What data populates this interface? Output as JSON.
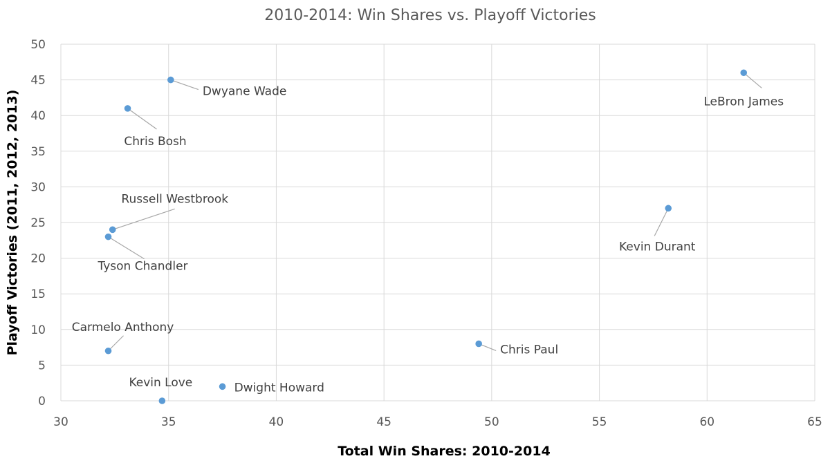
{
  "chart_data": {
    "type": "scatter",
    "title": "2010-2014: Win Shares vs. Playoff Victories",
    "xlabel": "Total Win Shares: 2010-2014",
    "ylabel": "Playoff Victories (2011, 2012, 2013)",
    "xlim": [
      30,
      65
    ],
    "ylim": [
      0,
      50
    ],
    "x_ticks": [
      "30",
      "35",
      "40",
      "45",
      "50",
      "55",
      "60",
      "65"
    ],
    "y_ticks": [
      "0",
      "5",
      "10",
      "15",
      "20",
      "25",
      "30",
      "35",
      "40",
      "45",
      "50"
    ],
    "grid": true,
    "marker_color": "#5b9bd5",
    "points": [
      {
        "label": "LeBron James",
        "x": 61.7,
        "y": 46
      },
      {
        "label": "Dwyane Wade",
        "x": 35.1,
        "y": 45
      },
      {
        "label": "Chris Bosh",
        "x": 33.1,
        "y": 41
      },
      {
        "label": "Kevin Durant",
        "x": 58.2,
        "y": 27
      },
      {
        "label": "Russell Westbrook",
        "x": 32.4,
        "y": 24
      },
      {
        "label": "Tyson Chandler",
        "x": 32.2,
        "y": 23
      },
      {
        "label": "Chris Paul",
        "x": 49.4,
        "y": 8
      },
      {
        "label": "Carmelo Anthony",
        "x": 32.2,
        "y": 7
      },
      {
        "label": "Dwight Howard",
        "x": 37.5,
        "y": 2
      },
      {
        "label": "Kevin Love",
        "x": 34.7,
        "y": 0
      }
    ]
  }
}
